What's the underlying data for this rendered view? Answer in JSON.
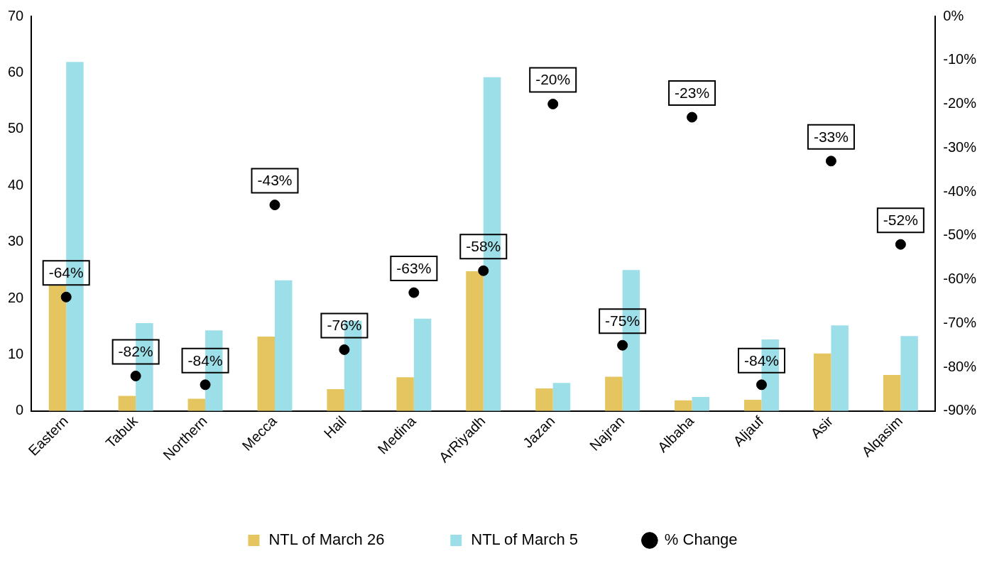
{
  "chart_data": {
    "type": "bar",
    "categories": [
      "Eastern",
      "Tabuk",
      "Northern",
      "Mecca",
      "Hail",
      "Medina",
      "ArRiyadh",
      "Jazan",
      "Najran",
      "Albaha",
      "Aljauf",
      "Asir",
      "Alqasim"
    ],
    "series": [
      {
        "name": "NTL of March 26",
        "color": "#e5c55f",
        "values": [
          22.4,
          2.7,
          2.2,
          13.2,
          3.9,
          6.0,
          24.8,
          4.0,
          6.1,
          1.9,
          2.0,
          10.2,
          6.4
        ]
      },
      {
        "name": "NTL of March 5",
        "color": "#9cdfe8",
        "values": [
          61.9,
          15.6,
          14.3,
          23.2,
          16.0,
          16.4,
          59.2,
          5.0,
          25.0,
          2.5,
          12.7,
          15.2,
          13.3
        ]
      },
      {
        "name": "% Change",
        "type": "scatter",
        "axis": "y2",
        "color": "#000000",
        "x": [
          "Eastern",
          "Tabuk",
          "Northern",
          "Mecca",
          "Hail",
          "Medina",
          "ArRiyadh",
          "Jazan",
          "Najran",
          "Albaha",
          "Aljauf",
          "Asir",
          "Alqasim"
        ],
        "values": [
          -64,
          -82,
          -84,
          -43,
          -76,
          -63,
          -58,
          -20,
          -75,
          -23,
          -84,
          -33,
          -52
        ],
        "value_labels": [
          "-64%",
          "-82%",
          "-84%",
          "-43%",
          "-76%",
          "-63%",
          "-58%",
          "-20%",
          "-75%",
          "-23%",
          "-84%",
          "-33%",
          "-52%"
        ]
      }
    ],
    "ylim": [
      0,
      70
    ],
    "yticks": [
      0,
      10,
      20,
      30,
      40,
      50,
      60,
      70
    ],
    "y2lim": [
      -90,
      0
    ],
    "y2ticks": [
      {
        "value": 0,
        "label": "0%"
      },
      {
        "value": -10,
        "label": "-10%"
      },
      {
        "value": -20,
        "label": "-20%"
      },
      {
        "value": -30,
        "label": "-30%"
      },
      {
        "value": -40,
        "label": "-40%"
      },
      {
        "value": -50,
        "label": "-50%"
      },
      {
        "value": -60,
        "label": "-60%"
      },
      {
        "value": -70,
        "label": "-70%"
      },
      {
        "value": -80,
        "label": "-80%"
      },
      {
        "value": -90,
        "label": "-90%"
      }
    ],
    "grid": false,
    "legend": "bottom",
    "marker": "circle"
  }
}
